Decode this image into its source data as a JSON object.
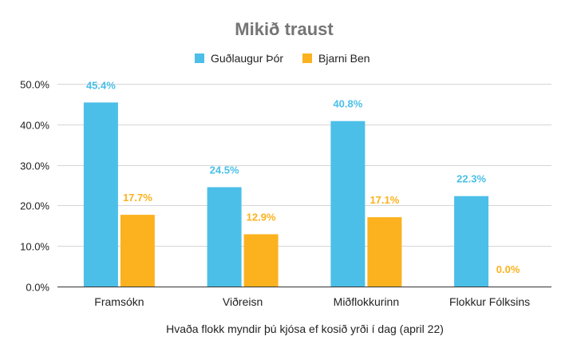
{
  "chart_data": {
    "type": "bar",
    "title": "Mikið traust",
    "xlabel": "Hvaða flokk myndir þú kjósa ef kosið yrði í dag (april 22)",
    "ylabel": "",
    "categories": [
      "Framsókn",
      "Viðreisn",
      "Miðflokkurinn",
      "Flokkur Fólksins"
    ],
    "series": [
      {
        "name": "Guðlaugur Þór",
        "color": "#4bbfe8",
        "values": [
          45.4,
          24.5,
          40.8,
          22.3
        ],
        "labels": [
          "45.4%",
          "24.5%",
          "40.8%",
          "22.3%"
        ]
      },
      {
        "name": "Bjarni Ben",
        "color": "#fbb21e",
        "values": [
          17.7,
          12.9,
          17.1,
          0.0
        ],
        "labels": [
          "17.7%",
          "12.9%",
          "17.1%",
          "0.0%"
        ]
      }
    ],
    "ylim": [
      0,
      50
    ],
    "yticks": [
      "0.0%",
      "10.0%",
      "20.0%",
      "30.0%",
      "40.0%",
      "50.0%"
    ],
    "grid": true,
    "legend_position": "top"
  }
}
